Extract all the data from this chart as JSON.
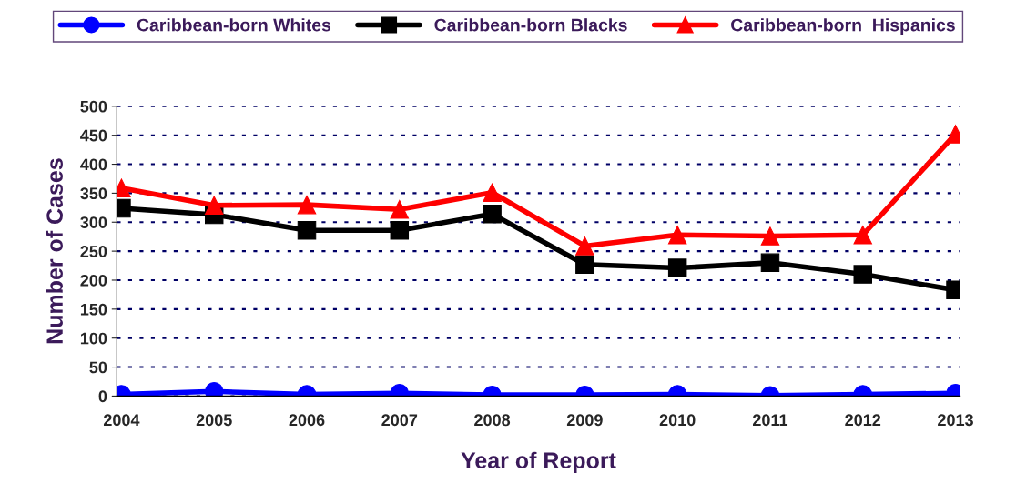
{
  "chart_data": {
    "type": "line",
    "xlabel": "Year of Report",
    "ylabel": "Number of Cases",
    "categories": [
      "2004",
      "2005",
      "2006",
      "2007",
      "2008",
      "2009",
      "2010",
      "2011",
      "2012",
      "2013"
    ],
    "series": [
      {
        "name": "Caribbean-born Whites",
        "color": "#0000ff",
        "marker": "circle",
        "values": [
          3,
          8,
          3,
          5,
          2,
          2,
          3,
          1,
          3,
          5
        ]
      },
      {
        "name": "Caribbean-born Blacks",
        "color": "#000000",
        "marker": "square",
        "values": [
          324,
          313,
          286,
          286,
          314,
          227,
          221,
          230,
          210,
          183
        ]
      },
      {
        "name": "Caribbean-born  Hispanics",
        "color": "#ff0000",
        "marker": "triangle",
        "values": [
          359,
          329,
          330,
          322,
          351,
          259,
          278,
          276,
          278,
          452
        ]
      }
    ],
    "ylim": [
      0,
      500
    ],
    "yticks": [
      0,
      50,
      100,
      150,
      200,
      250,
      300,
      350,
      400,
      450,
      500
    ],
    "grid": "y",
    "legend": "top",
    "line_style": "solid"
  }
}
